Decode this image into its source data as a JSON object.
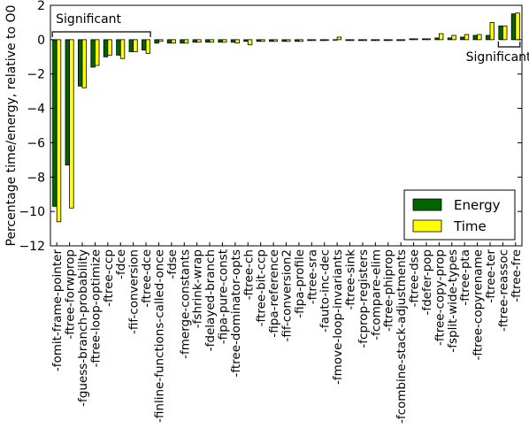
{
  "chart_data": {
    "type": "bar",
    "ylabel": "Percentage time/energy, relative to O0",
    "ylim": [
      -12,
      2
    ],
    "yticks": [
      2,
      0,
      -2,
      -4,
      -6,
      -8,
      -10,
      -12
    ],
    "grid": false,
    "legend_position": "lower-right",
    "categories": [
      "-fomit-frame-pointer",
      "-ftree-forwprop",
      "-fguess-branch-probability",
      "-ftree-loop-optimize",
      "-ftree-ccp",
      "-fdce",
      "-fif-conversion",
      "-ftree-dce",
      "-finline-functions-called-once",
      "-fdse",
      "-fmerge-constants",
      "-fshrink-wrap",
      "-fdelayed-branch",
      "-fipa-pure-const",
      "-ftree-dominator-opts",
      "-ftree-ch",
      "-ftree-bit-ccp",
      "-fipa-reference",
      "-fif-conversion2",
      "-fipa-profile",
      "-ftree-sra",
      "-fauto-inc-dec",
      "-fmove-loop-invariants",
      "-ftree-sink",
      "-fcprop-registers",
      "-fcompare-elim",
      "-ftree-phiprop",
      "-fcombine-stack-adjustments",
      "-ftree-dse",
      "-fdefer-pop",
      "-ftree-copy-prop",
      "-fsplit-wide-types",
      "-ftree-pta",
      "-ftree-copyrename",
      "-ftree-ter",
      "-ftree-reassoc",
      "-ftree-fre"
    ],
    "series": [
      {
        "name": "Energy",
        "color": "#006400",
        "values": [
          -9.7,
          -7.3,
          -2.7,
          -1.6,
          -1.0,
          -0.9,
          -0.7,
          -0.6,
          -0.2,
          -0.2,
          -0.2,
          -0.15,
          -0.15,
          -0.15,
          -0.15,
          -0.1,
          -0.1,
          -0.1,
          -0.1,
          -0.1,
          -0.05,
          -0.05,
          0.0,
          -0.05,
          -0.05,
          -0.05,
          -0.05,
          -0.05,
          0.05,
          0.05,
          0.1,
          0.1,
          0.15,
          0.25,
          0.25,
          0.8,
          1.5
        ]
      },
      {
        "name": "Time",
        "color": "#ffff00",
        "values": [
          -10.6,
          -9.8,
          -2.8,
          -1.5,
          -0.9,
          -1.1,
          -0.7,
          -0.8,
          -0.1,
          -0.2,
          -0.2,
          -0.15,
          -0.15,
          -0.15,
          -0.2,
          -0.3,
          -0.1,
          -0.1,
          -0.1,
          -0.1,
          -0.05,
          -0.05,
          0.15,
          -0.05,
          -0.05,
          -0.05,
          -0.05,
          -0.05,
          0.05,
          0.05,
          0.35,
          0.25,
          0.3,
          0.3,
          1.0,
          0.8,
          1.55
        ]
      }
    ],
    "annotations": [
      {
        "text": "Significant",
        "from_category": 0,
        "to_category": 7,
        "side": "top"
      },
      {
        "text": "Significant",
        "from_category": 35,
        "to_category": 36,
        "side": "bottom"
      }
    ]
  }
}
